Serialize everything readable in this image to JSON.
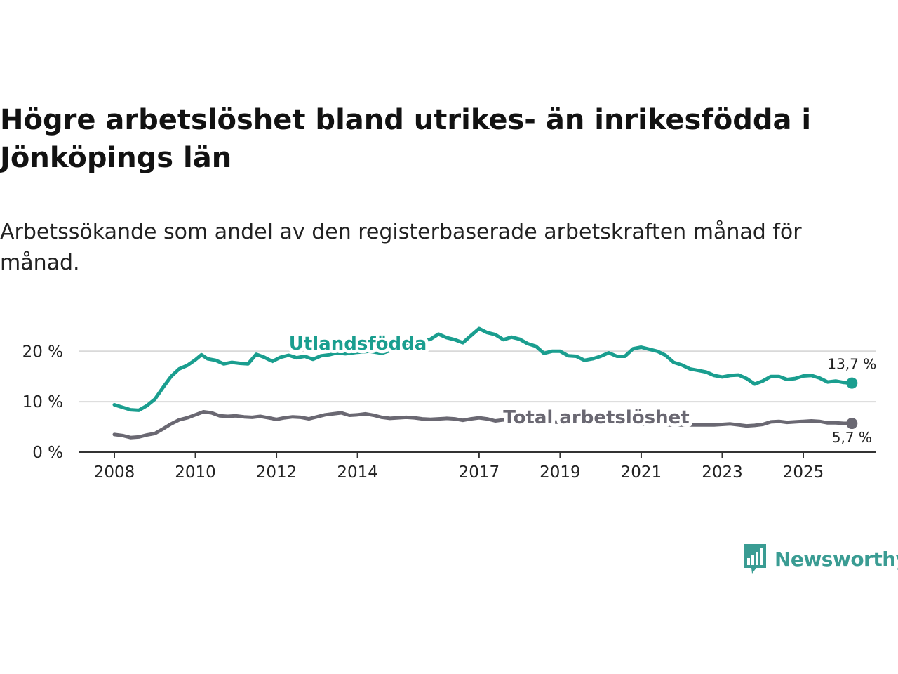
{
  "title": "Högre arbetslöshet bland utrikes- än inrikesfödda i Jönköpings län",
  "subtitle": "Arbetssökande som andel av den registerbaserade arbetskraften månad för månad.",
  "colors": {
    "utlandsfodda": "#1a9e8f",
    "total": "#6a6872",
    "grid": "#d9d9d9",
    "axis": "#333333",
    "brand": "#3a9c93"
  },
  "logo": {
    "text": "Newsworthy",
    "icon": "newsworthy-logo-icon"
  },
  "chart_data": {
    "type": "line",
    "title": "Högre arbetslöshet bland utrikes- än inrikesfödda i Jönköpings län",
    "xlabel": "",
    "ylabel": "",
    "xlim": [
      2008.0,
      2026.8
    ],
    "ylim": [
      0,
      25
    ],
    "x_ticks": [
      2008,
      2010,
      2012,
      2014,
      2017,
      2019,
      2021,
      2023,
      2025
    ],
    "x_tick_labels": [
      "2008",
      "2010",
      "2012",
      "2014",
      "2017",
      "2019",
      "2021",
      "2023",
      "2025"
    ],
    "y_ticks": [
      0,
      10,
      20
    ],
    "y_tick_labels": [
      "0 %",
      "10 %",
      "20 %"
    ],
    "grid": true,
    "series": [
      {
        "name": "Utlandsfödda",
        "end_label": "13,7 %",
        "points": [
          [
            2008.0,
            9.4
          ],
          [
            2008.2,
            8.9
          ],
          [
            2008.4,
            8.4
          ],
          [
            2008.6,
            8.3
          ],
          [
            2008.8,
            9.2
          ],
          [
            2009.0,
            10.5
          ],
          [
            2009.2,
            12.8
          ],
          [
            2009.4,
            15.0
          ],
          [
            2009.6,
            16.5
          ],
          [
            2009.8,
            17.2
          ],
          [
            2010.0,
            18.3
          ],
          [
            2010.15,
            19.3
          ],
          [
            2010.3,
            18.5
          ],
          [
            2010.5,
            18.2
          ],
          [
            2010.7,
            17.5
          ],
          [
            2010.9,
            17.8
          ],
          [
            2011.1,
            17.6
          ],
          [
            2011.3,
            17.5
          ],
          [
            2011.5,
            19.4
          ],
          [
            2011.7,
            18.8
          ],
          [
            2011.9,
            18.0
          ],
          [
            2012.1,
            18.8
          ],
          [
            2012.3,
            19.2
          ],
          [
            2012.5,
            18.7
          ],
          [
            2012.7,
            19.0
          ],
          [
            2012.9,
            18.4
          ],
          [
            2013.1,
            19.1
          ],
          [
            2013.3,
            19.3
          ],
          [
            2013.5,
            19.7
          ],
          [
            2013.7,
            19.5
          ],
          [
            2014.0,
            19.8
          ],
          [
            2014.3,
            20.0
          ],
          [
            2014.6,
            19.6
          ],
          [
            2014.9,
            20.4
          ],
          [
            2015.2,
            21.0
          ],
          [
            2015.5,
            21.6
          ],
          [
            2015.8,
            22.4
          ],
          [
            2016.0,
            23.4
          ],
          [
            2016.2,
            22.7
          ],
          [
            2016.4,
            22.3
          ],
          [
            2016.6,
            21.7
          ],
          [
            2016.8,
            23.1
          ],
          [
            2017.0,
            24.5
          ],
          [
            2017.2,
            23.7
          ],
          [
            2017.4,
            23.3
          ],
          [
            2017.6,
            22.3
          ],
          [
            2017.8,
            22.8
          ],
          [
            2018.0,
            22.4
          ],
          [
            2018.2,
            21.5
          ],
          [
            2018.4,
            21.0
          ],
          [
            2018.6,
            19.6
          ],
          [
            2018.8,
            20.0
          ],
          [
            2019.0,
            20.0
          ],
          [
            2019.2,
            19.1
          ],
          [
            2019.4,
            19.0
          ],
          [
            2019.6,
            18.2
          ],
          [
            2019.8,
            18.5
          ],
          [
            2020.0,
            19.0
          ],
          [
            2020.2,
            19.7
          ],
          [
            2020.4,
            19.0
          ],
          [
            2020.6,
            19.0
          ],
          [
            2020.8,
            20.5
          ],
          [
            2021.0,
            20.8
          ],
          [
            2021.2,
            20.4
          ],
          [
            2021.4,
            20.0
          ],
          [
            2021.6,
            19.2
          ],
          [
            2021.8,
            17.8
          ],
          [
            2022.0,
            17.3
          ],
          [
            2022.2,
            16.5
          ],
          [
            2022.4,
            16.2
          ],
          [
            2022.6,
            15.9
          ],
          [
            2022.8,
            15.2
          ],
          [
            2023.0,
            14.9
          ],
          [
            2023.2,
            15.2
          ],
          [
            2023.4,
            15.3
          ],
          [
            2023.6,
            14.6
          ],
          [
            2023.8,
            13.5
          ],
          [
            2024.0,
            14.1
          ],
          [
            2024.2,
            15.0
          ],
          [
            2024.4,
            15.0
          ],
          [
            2024.6,
            14.4
          ],
          [
            2024.8,
            14.6
          ],
          [
            2025.0,
            15.1
          ],
          [
            2025.2,
            15.2
          ],
          [
            2025.4,
            14.7
          ],
          [
            2025.6,
            13.9
          ],
          [
            2025.8,
            14.1
          ],
          [
            2026.0,
            13.8
          ],
          [
            2026.2,
            13.7
          ]
        ]
      },
      {
        "name": "Total arbetslöshet",
        "end_label": "5,7 %",
        "points": [
          [
            2008.0,
            3.5
          ],
          [
            2008.2,
            3.3
          ],
          [
            2008.4,
            2.9
          ],
          [
            2008.6,
            3.0
          ],
          [
            2008.8,
            3.4
          ],
          [
            2009.0,
            3.7
          ],
          [
            2009.2,
            4.6
          ],
          [
            2009.4,
            5.6
          ],
          [
            2009.6,
            6.4
          ],
          [
            2009.8,
            6.8
          ],
          [
            2010.0,
            7.4
          ],
          [
            2010.2,
            8.0
          ],
          [
            2010.4,
            7.8
          ],
          [
            2010.6,
            7.2
          ],
          [
            2010.8,
            7.1
          ],
          [
            2011.0,
            7.2
          ],
          [
            2011.2,
            7.0
          ],
          [
            2011.4,
            6.9
          ],
          [
            2011.6,
            7.1
          ],
          [
            2011.8,
            6.8
          ],
          [
            2012.0,
            6.5
          ],
          [
            2012.2,
            6.8
          ],
          [
            2012.4,
            7.0
          ],
          [
            2012.6,
            6.9
          ],
          [
            2012.8,
            6.6
          ],
          [
            2013.0,
            7.0
          ],
          [
            2013.2,
            7.4
          ],
          [
            2013.4,
            7.6
          ],
          [
            2013.6,
            7.8
          ],
          [
            2013.8,
            7.3
          ],
          [
            2014.0,
            7.4
          ],
          [
            2014.2,
            7.6
          ],
          [
            2014.4,
            7.3
          ],
          [
            2014.6,
            6.9
          ],
          [
            2014.8,
            6.7
          ],
          [
            2015.0,
            6.8
          ],
          [
            2015.2,
            6.9
          ],
          [
            2015.4,
            6.8
          ],
          [
            2015.6,
            6.6
          ],
          [
            2015.8,
            6.5
          ],
          [
            2016.0,
            6.6
          ],
          [
            2016.2,
            6.7
          ],
          [
            2016.4,
            6.6
          ],
          [
            2016.6,
            6.3
          ],
          [
            2016.8,
            6.6
          ],
          [
            2017.0,
            6.8
          ],
          [
            2017.2,
            6.6
          ],
          [
            2017.4,
            6.2
          ],
          [
            2017.6,
            6.4
          ],
          [
            2017.8,
            6.2
          ],
          [
            2018.0,
            6.2
          ],
          [
            2018.2,
            6.1
          ],
          [
            2018.4,
            5.9
          ],
          [
            2018.6,
            6.0
          ],
          [
            2018.8,
            6.0
          ],
          [
            2019.0,
            5.9
          ],
          [
            2019.2,
            5.8
          ],
          [
            2019.4,
            5.7
          ],
          [
            2019.6,
            5.8
          ],
          [
            2019.8,
            5.7
          ],
          [
            2020.0,
            5.7
          ],
          [
            2020.2,
            5.7
          ],
          [
            2020.4,
            5.6
          ],
          [
            2020.6,
            5.6
          ],
          [
            2020.8,
            5.6
          ],
          [
            2021.0,
            5.5
          ],
          [
            2021.2,
            5.5
          ],
          [
            2021.4,
            5.5
          ],
          [
            2021.6,
            5.4
          ],
          [
            2021.8,
            5.4
          ],
          [
            2022.0,
            5.4
          ],
          [
            2022.2,
            5.4
          ],
          [
            2022.4,
            5.4
          ],
          [
            2022.6,
            5.4
          ],
          [
            2022.8,
            5.4
          ],
          [
            2023.0,
            5.5
          ],
          [
            2023.2,
            5.6
          ],
          [
            2023.4,
            5.4
          ],
          [
            2023.6,
            5.2
          ],
          [
            2023.8,
            5.3
          ],
          [
            2024.0,
            5.5
          ],
          [
            2024.2,
            6.0
          ],
          [
            2024.4,
            6.1
          ],
          [
            2024.6,
            5.9
          ],
          [
            2024.8,
            6.0
          ],
          [
            2025.0,
            6.1
          ],
          [
            2025.2,
            6.2
          ],
          [
            2025.4,
            6.1
          ],
          [
            2025.6,
            5.8
          ],
          [
            2025.8,
            5.8
          ],
          [
            2026.0,
            5.7
          ],
          [
            2026.2,
            5.7
          ]
        ]
      }
    ]
  }
}
